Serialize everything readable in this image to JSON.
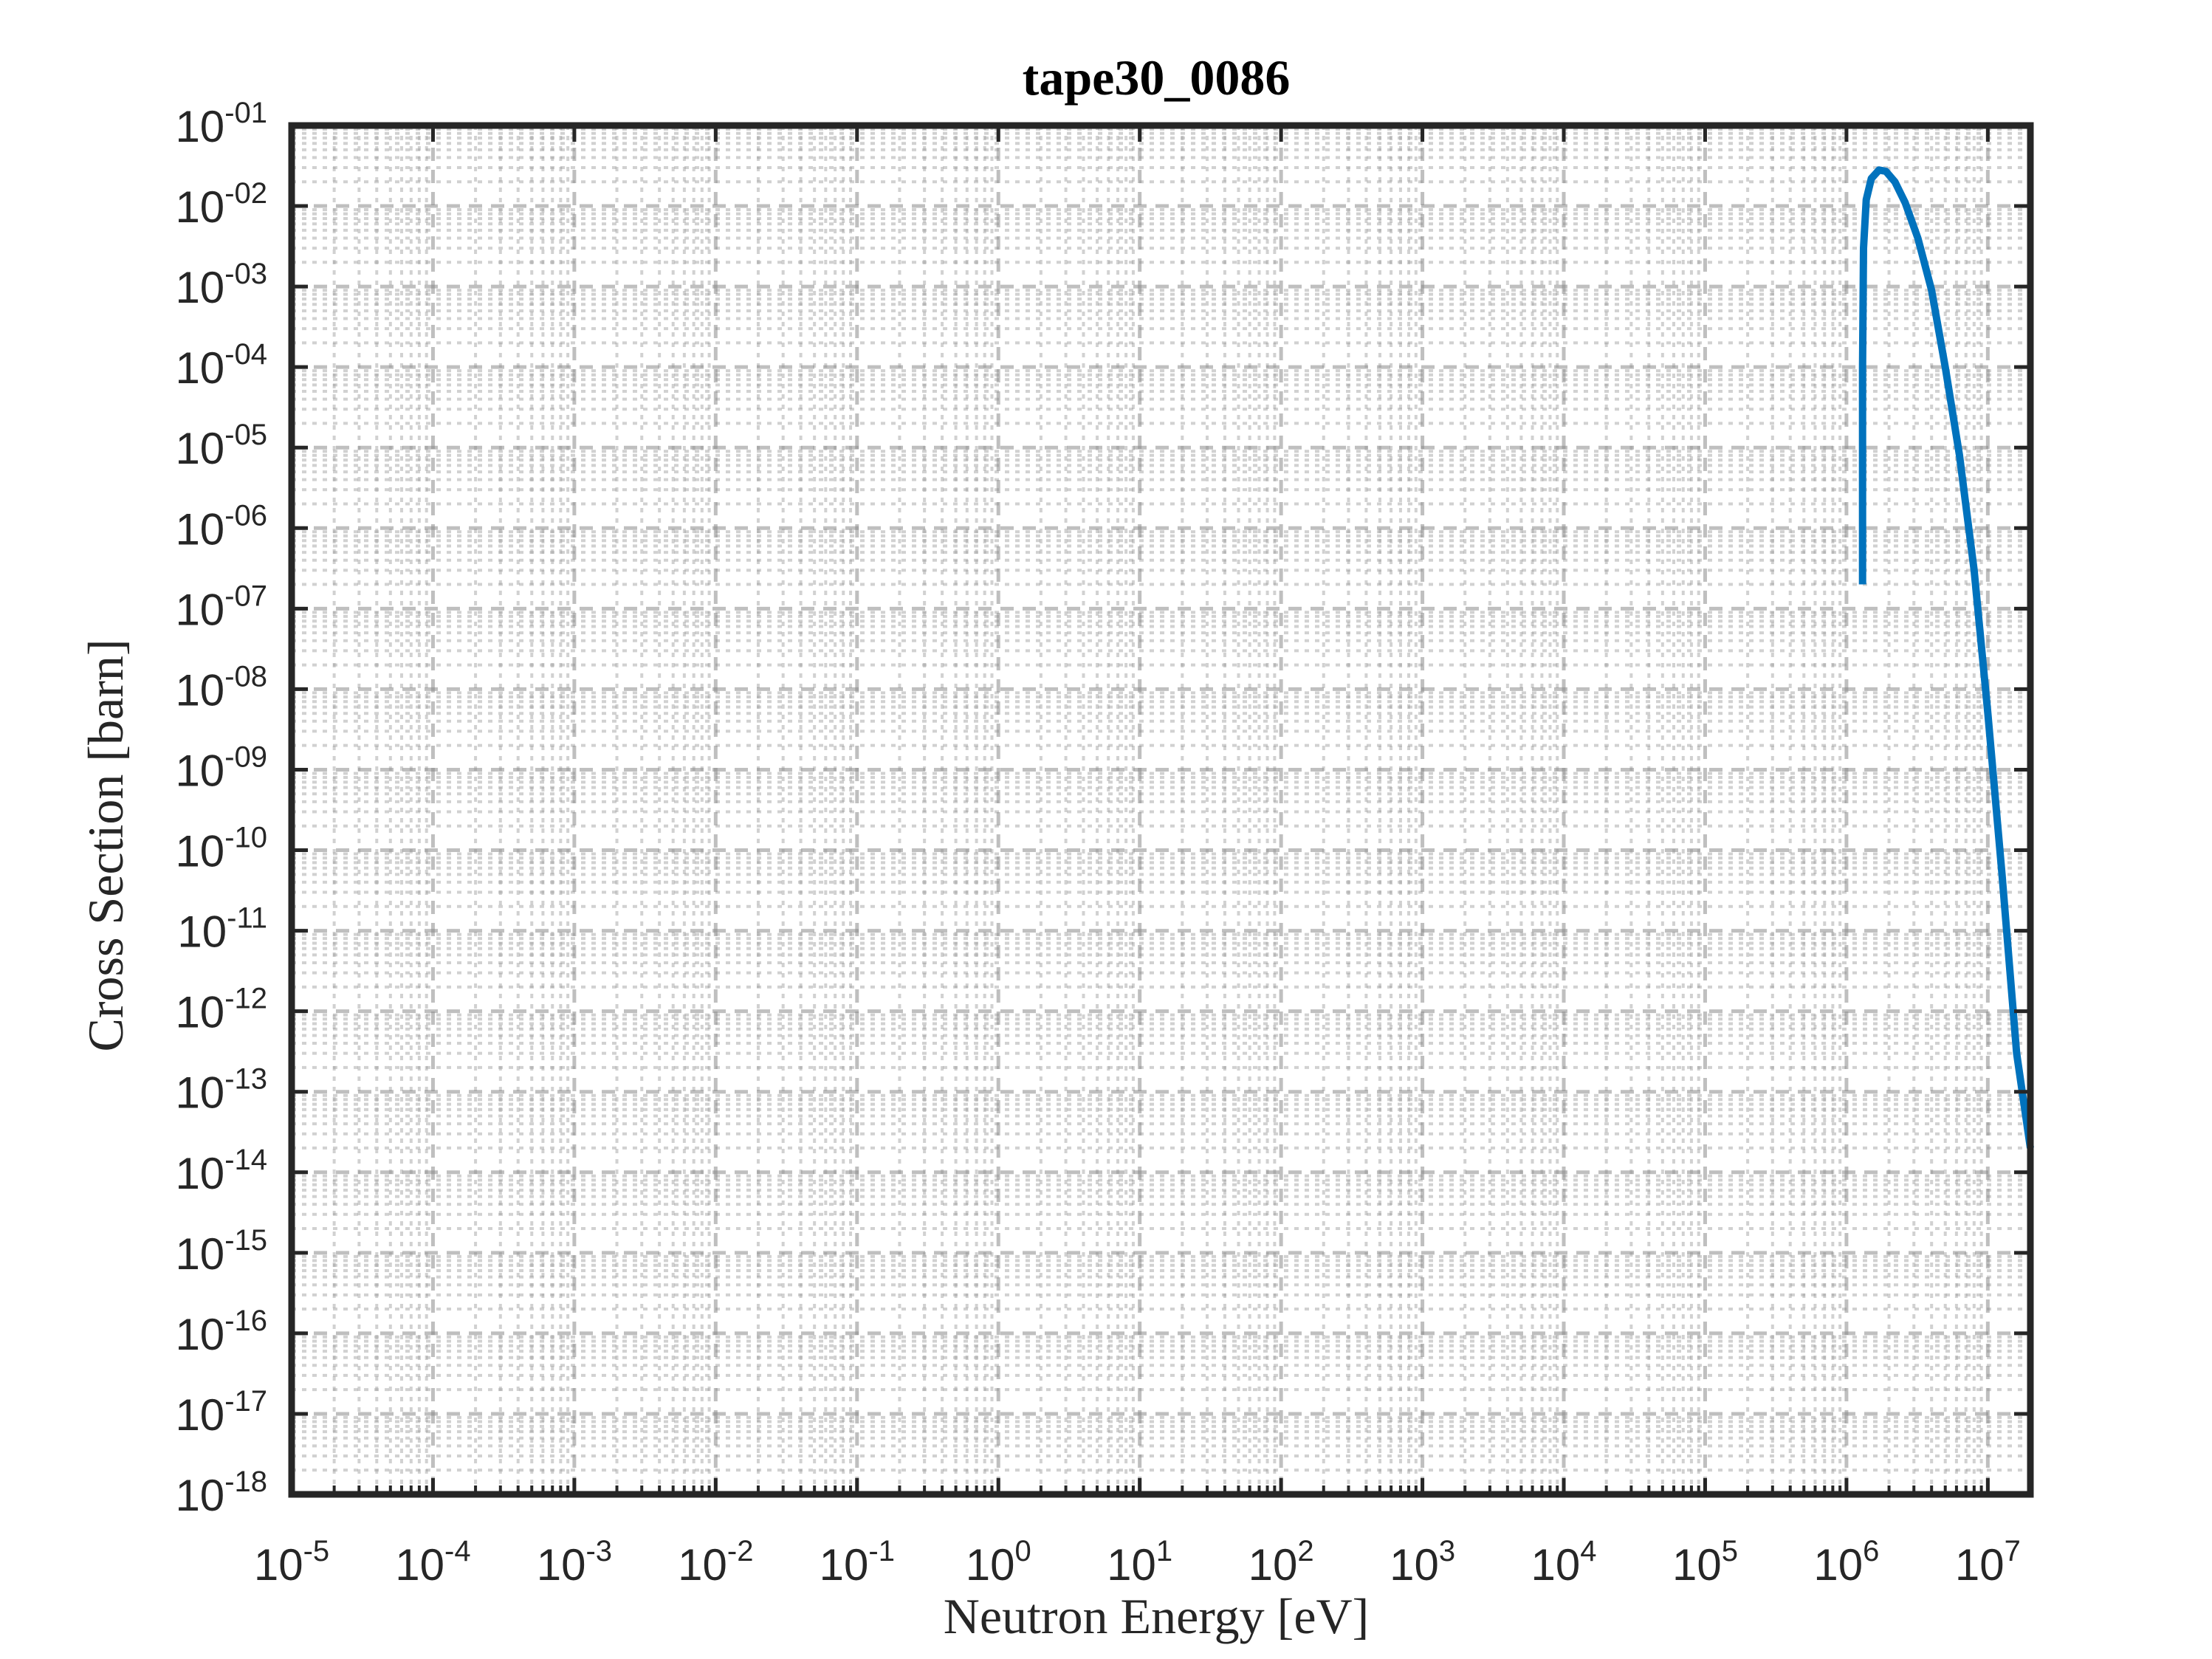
{
  "chart_data": {
    "type": "line",
    "title": "tape30_0086",
    "xlabel": "Neutron Energy [eV]",
    "ylabel": "Cross Section [barn]",
    "x_scale": "log",
    "y_scale": "log",
    "xlim": [
      1e-05,
      20000000.0
    ],
    "ylim": [
      1e-18,
      0.1
    ],
    "x_ticks": [
      {
        "base": "10",
        "exp": "-5",
        "value": 1e-05
      },
      {
        "base": "10",
        "exp": "-4",
        "value": 0.0001
      },
      {
        "base": "10",
        "exp": "-3",
        "value": 0.001
      },
      {
        "base": "10",
        "exp": "-2",
        "value": 0.01
      },
      {
        "base": "10",
        "exp": "-1",
        "value": 0.1
      },
      {
        "base": "10",
        "exp": "0",
        "value": 1.0
      },
      {
        "base": "10",
        "exp": "1",
        "value": 10.0
      },
      {
        "base": "10",
        "exp": "2",
        "value": 100.0
      },
      {
        "base": "10",
        "exp": "3",
        "value": 1000.0
      },
      {
        "base": "10",
        "exp": "4",
        "value": 10000.0
      },
      {
        "base": "10",
        "exp": "5",
        "value": 100000.0
      },
      {
        "base": "10",
        "exp": "6",
        "value": 1000000.0
      },
      {
        "base": "10",
        "exp": "7",
        "value": 10000000.0
      }
    ],
    "y_ticks": [
      {
        "base": "10",
        "exp": "-01",
        "value": 0.1
      },
      {
        "base": "10",
        "exp": "-02",
        "value": 0.01
      },
      {
        "base": "10",
        "exp": "-03",
        "value": 0.001
      },
      {
        "base": "10",
        "exp": "-04",
        "value": 0.0001
      },
      {
        "base": "10",
        "exp": "-05",
        "value": 1e-05
      },
      {
        "base": "10",
        "exp": "-06",
        "value": 1e-06
      },
      {
        "base": "10",
        "exp": "-07",
        "value": 1e-07
      },
      {
        "base": "10",
        "exp": "-08",
        "value": 1e-08
      },
      {
        "base": "10",
        "exp": "-09",
        "value": 1e-09
      },
      {
        "base": "10",
        "exp": "-10",
        "value": 1e-10
      },
      {
        "base": "10",
        "exp": "-11",
        "value": 1e-11
      },
      {
        "base": "10",
        "exp": "-12",
        "value": 1e-12
      },
      {
        "base": "10",
        "exp": "-13",
        "value": 1e-13
      },
      {
        "base": "10",
        "exp": "-14",
        "value": 1e-14
      },
      {
        "base": "10",
        "exp": "-15",
        "value": 1e-15
      },
      {
        "base": "10",
        "exp": "-16",
        "value": 1e-16
      },
      {
        "base": "10",
        "exp": "-17",
        "value": 1e-17
      },
      {
        "base": "10",
        "exp": "-18",
        "value": 1e-18
      }
    ],
    "grid": "on (major and minor, dashed)",
    "legend": "none",
    "series": [
      {
        "color": "#0072bd",
        "x": [
          1300000.0,
          1300000.0,
          1320000.0,
          1380000.0,
          1500000.0,
          1700000.0,
          1900000.0,
          2200000.0,
          2600000.0,
          3200000.0,
          4000000.0,
          5000000.0,
          6300000.0,
          8000000.0,
          10000000.0,
          12600000.0,
          16000000.0,
          20000000.0
        ],
        "y": [
          2e-07,
          0.0001,
          0.003,
          0.012,
          0.022,
          0.028,
          0.027,
          0.02,
          0.011,
          0.004,
          0.0009,
          0.0001,
          8e-06,
          3e-07,
          5e-09,
          5e-11,
          3e-13,
          2e-14
        ]
      }
    ]
  }
}
